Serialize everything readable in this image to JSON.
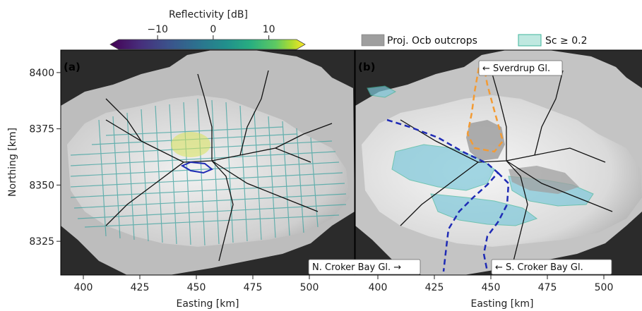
{
  "colorbar": {
    "label": "Reflectivity [dB]",
    "ticks": [
      {
        "value": -10,
        "label": "−10"
      },
      {
        "value": 0,
        "label": "0"
      },
      {
        "value": 10,
        "label": "10"
      }
    ],
    "range": [
      -17,
      15
    ],
    "colormap": "viridis"
  },
  "legend": {
    "items": [
      {
        "label": "Proj. Ocb outcrops",
        "color": "#9e9e9e"
      },
      {
        "label": "Sc ≥ 0.2",
        "color": "#bfe8e0"
      }
    ]
  },
  "panel_a": {
    "tag": "(a)",
    "x_ticks": [
      {
        "value": 400,
        "label": "400"
      },
      {
        "value": 425,
        "label": "425"
      },
      {
        "value": 450,
        "label": "450"
      },
      {
        "value": 475,
        "label": "475"
      },
      {
        "value": 500,
        "label": "500"
      }
    ],
    "y_ticks": [
      {
        "value": 8400,
        "label": "8400"
      },
      {
        "value": 8375,
        "label": "8375"
      },
      {
        "value": 8350,
        "label": "8350"
      },
      {
        "value": 8325,
        "label": "8325"
      }
    ],
    "xlabel": "Easting [km]",
    "ylabel": "Northing [km]",
    "xlim": [
      390,
      520
    ],
    "ylim": [
      8310,
      8410
    ]
  },
  "panel_b": {
    "tag": "(b)",
    "x_ticks": [
      {
        "value": 400,
        "label": "400"
      },
      {
        "value": 425,
        "label": "425"
      },
      {
        "value": 450,
        "label": "450"
      },
      {
        "value": 475,
        "label": "475"
      },
      {
        "value": 500,
        "label": "500"
      }
    ],
    "xlabel": "Easting [km]",
    "xlim": [
      390,
      520
    ],
    "ylim": [
      8310,
      8410
    ],
    "annotations": [
      {
        "text": "← Sverdrup Gl."
      },
      {
        "text": "N. Croker Bay Gl. →"
      },
      {
        "text": "← S. Croker Bay Gl."
      }
    ]
  }
}
